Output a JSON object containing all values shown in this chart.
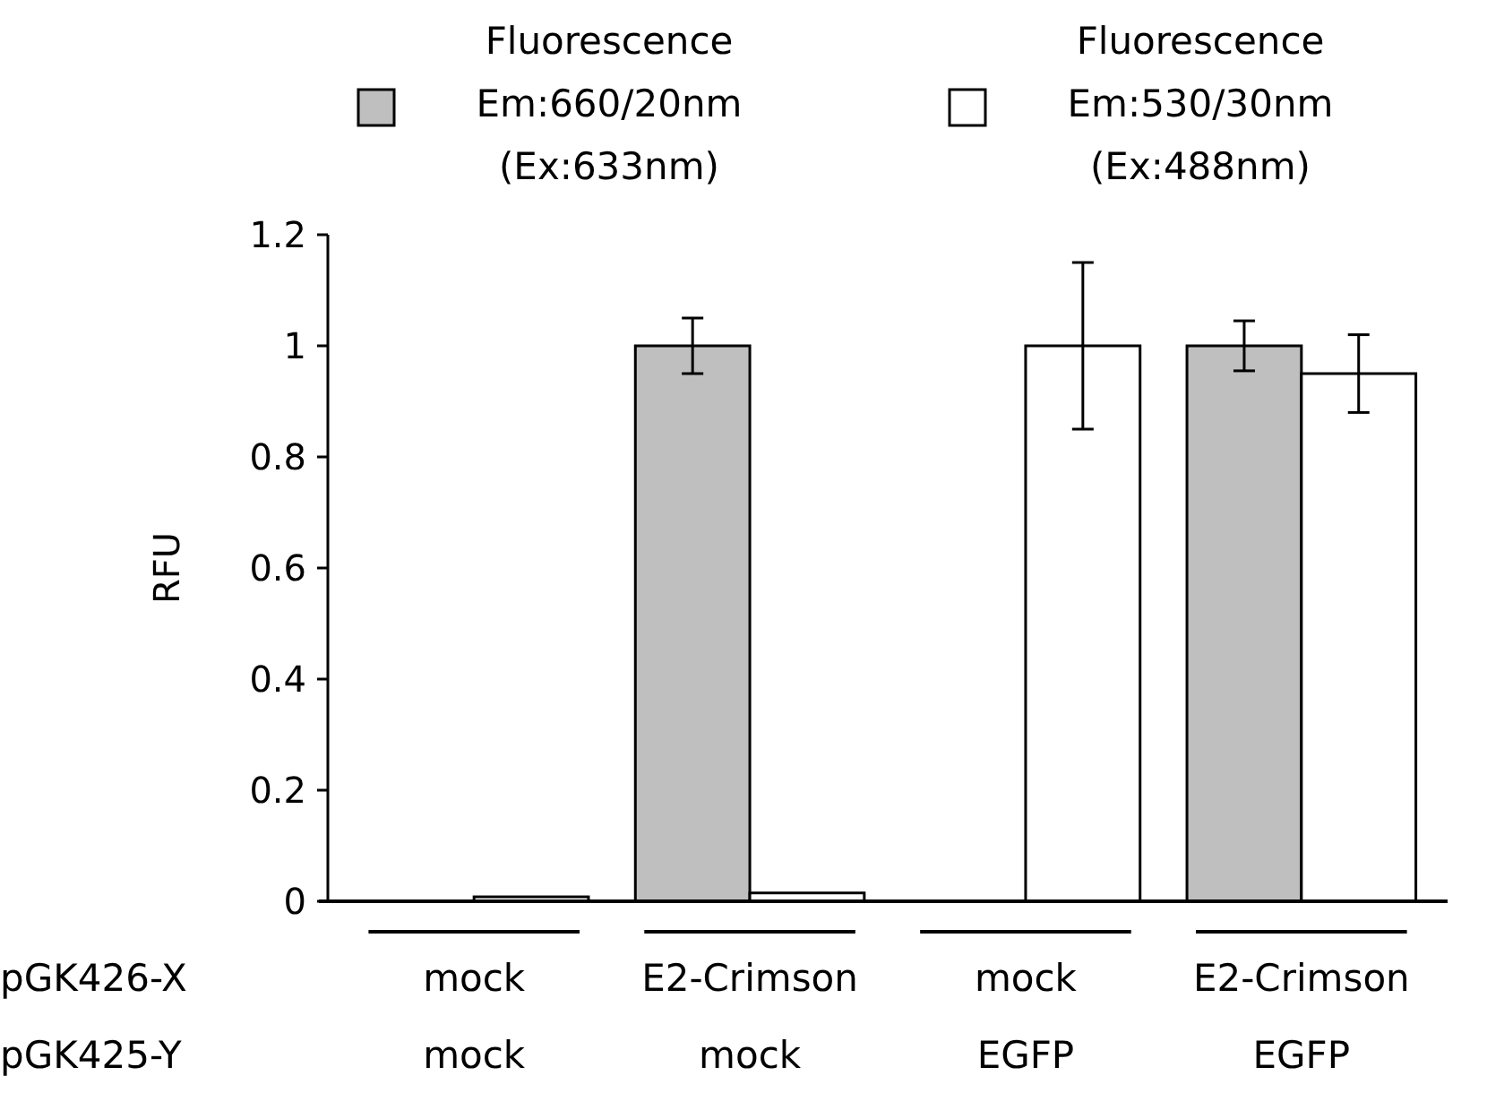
{
  "chart_data": {
    "type": "bar",
    "categories": [
      "mock\nmock",
      "E2-Crimson\nmock",
      "mock\nEGFP",
      "E2-Crimson\nEGFP"
    ],
    "series": [
      {
        "name": "Fluorescence\nEm:660/20nm\n(Ex:633nm)",
        "color": "#bfbfbf",
        "values": [
          null,
          1.0,
          null,
          1.0
        ],
        "errors": [
          null,
          0.05,
          null,
          0.045
        ]
      },
      {
        "name": "Fluorescence\nEm:530/30nm\n(Ex:488nm)",
        "color": "#ffffff",
        "values": [
          0.008,
          0.015,
          1.0,
          0.95
        ],
        "errors": [
          null,
          null,
          0.15,
          0.07
        ]
      }
    ],
    "ylabel": "RFU",
    "ylim": [
      0,
      1.2
    ],
    "yticks": [
      0,
      0.2,
      0.4,
      0.6,
      0.8,
      1,
      1.2
    ],
    "legend": "top",
    "annotations": [
      "pGK426-X",
      "pGK425-Y"
    ]
  }
}
